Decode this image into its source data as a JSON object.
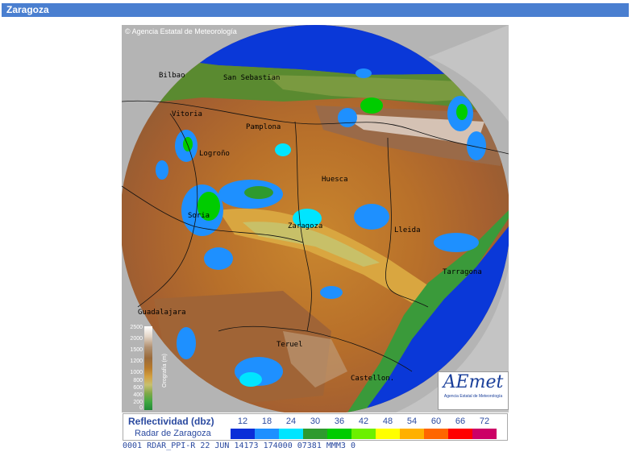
{
  "header": {
    "title": "Zaragoza"
  },
  "map": {
    "copyright": "Agencia Estatal de Meteorología",
    "cities": [
      {
        "name": "Bilbao"
      },
      {
        "name": "San Sebastian"
      },
      {
        "name": "Vitoria"
      },
      {
        "name": "Pamplona"
      },
      {
        "name": "Logroño"
      },
      {
        "name": "Huesca"
      },
      {
        "name": "Soria"
      },
      {
        "name": "Zaragoza"
      },
      {
        "name": "Lleida"
      },
      {
        "name": "Tarragona"
      },
      {
        "name": "Guadalajara"
      },
      {
        "name": "Teruel"
      },
      {
        "name": "Castellon."
      }
    ],
    "orography": {
      "title": "Orografía (m)",
      "levels": [
        "2500",
        "2000",
        "1500",
        "1200",
        "1000",
        "800",
        "600",
        "400",
        "200",
        "0"
      ]
    },
    "logo": {
      "text": "AEmet",
      "subtitle": "Agencia Estatal de Meteorología"
    }
  },
  "legend": {
    "title": "Reflectividad (dbz)",
    "subtitle": "Radar de Zaragoza",
    "values": [
      "12",
      "18",
      "24",
      "30",
      "36",
      "42",
      "48",
      "54",
      "60",
      "66",
      "72"
    ],
    "colors": [
      "#0a2ed8",
      "#1e90ff",
      "#00e5ff",
      "#2e9a2e",
      "#00cc00",
      "#6cf000",
      "#ffff00",
      "#ffb000",
      "#ff6600",
      "#ff0000",
      "#cc0066"
    ]
  },
  "status": {
    "text": "0001 RDAR_PPI-R   22 JUN 14173 174000  07381  MMM3 0"
  }
}
